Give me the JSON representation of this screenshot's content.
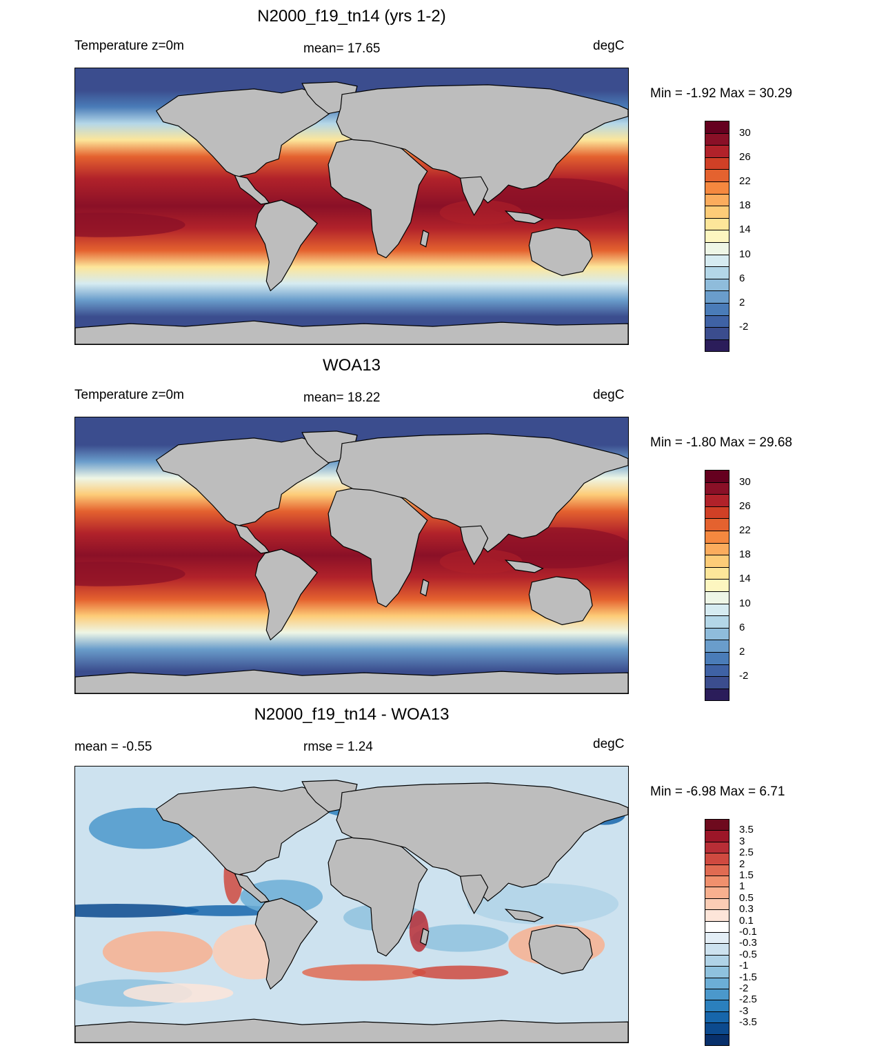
{
  "panels": [
    {
      "title": "N2000_f19_tn14 (yrs 1-2)",
      "left_label": "Temperature z=0m",
      "center_label": "mean=  17.65",
      "right_label": "degC",
      "minmax": "Min =  -1.92 Max =  30.29",
      "variant": "model",
      "colorbar": {
        "colors": [
          "#2b1d5a",
          "#3b4d8e",
          "#3f62a5",
          "#4a7cb8",
          "#6a9dcb",
          "#8fbcdb",
          "#b4d7e8",
          "#d6ebf1",
          "#eef6e6",
          "#fdf6c0",
          "#fde69a",
          "#fdcc78",
          "#fbac5d",
          "#f5883f",
          "#e4622f",
          "#d04026",
          "#b1222a",
          "#8a1027",
          "#65001f"
        ],
        "labels": [
          "30",
          "26",
          "22",
          "18",
          "14",
          "10",
          "6",
          "2",
          "-2"
        ]
      }
    },
    {
      "title": "WOA13",
      "left_label": "Temperature z=0m",
      "center_label": "mean=  18.22",
      "right_label": "degC",
      "minmax": "Min =  -1.80 Max =  29.68",
      "variant": "obs",
      "colorbar": {
        "colors": [
          "#2b1d5a",
          "#3b4d8e",
          "#3f62a5",
          "#4a7cb8",
          "#6a9dcb",
          "#8fbcdb",
          "#b4d7e8",
          "#d6ebf1",
          "#eef6e6",
          "#fdf6c0",
          "#fde69a",
          "#fdcc78",
          "#fbac5d",
          "#f5883f",
          "#e4622f",
          "#d04026",
          "#b1222a",
          "#8a1027",
          "#65001f"
        ],
        "labels": [
          "30",
          "26",
          "22",
          "18",
          "14",
          "10",
          "6",
          "2",
          "-2"
        ]
      }
    },
    {
      "title": "N2000_f19_tn14 - WOA13",
      "left_label": "mean =  -0.55",
      "center_label": "rmse =   1.24",
      "right_label": "degC",
      "minmax": "Min =  -6.98 Max =   6.71",
      "variant": "diff",
      "colorbar": {
        "colors": [
          "#08306b",
          "#0c4a8e",
          "#1766ab",
          "#2b80bd",
          "#4b98cb",
          "#6caed6",
          "#8fc2de",
          "#b0d3e7",
          "#cde2ef",
          "#e3eef6",
          "#ffffff",
          "#fde5d9",
          "#fbcdb5",
          "#f8b08f",
          "#f0906d",
          "#e06b52",
          "#cf4a40",
          "#b82e36",
          "#9c1628",
          "#6e0a1e"
        ],
        "labels": [
          "3.5",
          "3",
          "2.5",
          "2",
          "1.5",
          "1",
          "0.5",
          "0.3",
          "0.1",
          "-0.1",
          "-0.3",
          "-0.5",
          "-1",
          "-1.5",
          "-2",
          "-2.5",
          "-3",
          "-3.5"
        ]
      }
    }
  ]
}
